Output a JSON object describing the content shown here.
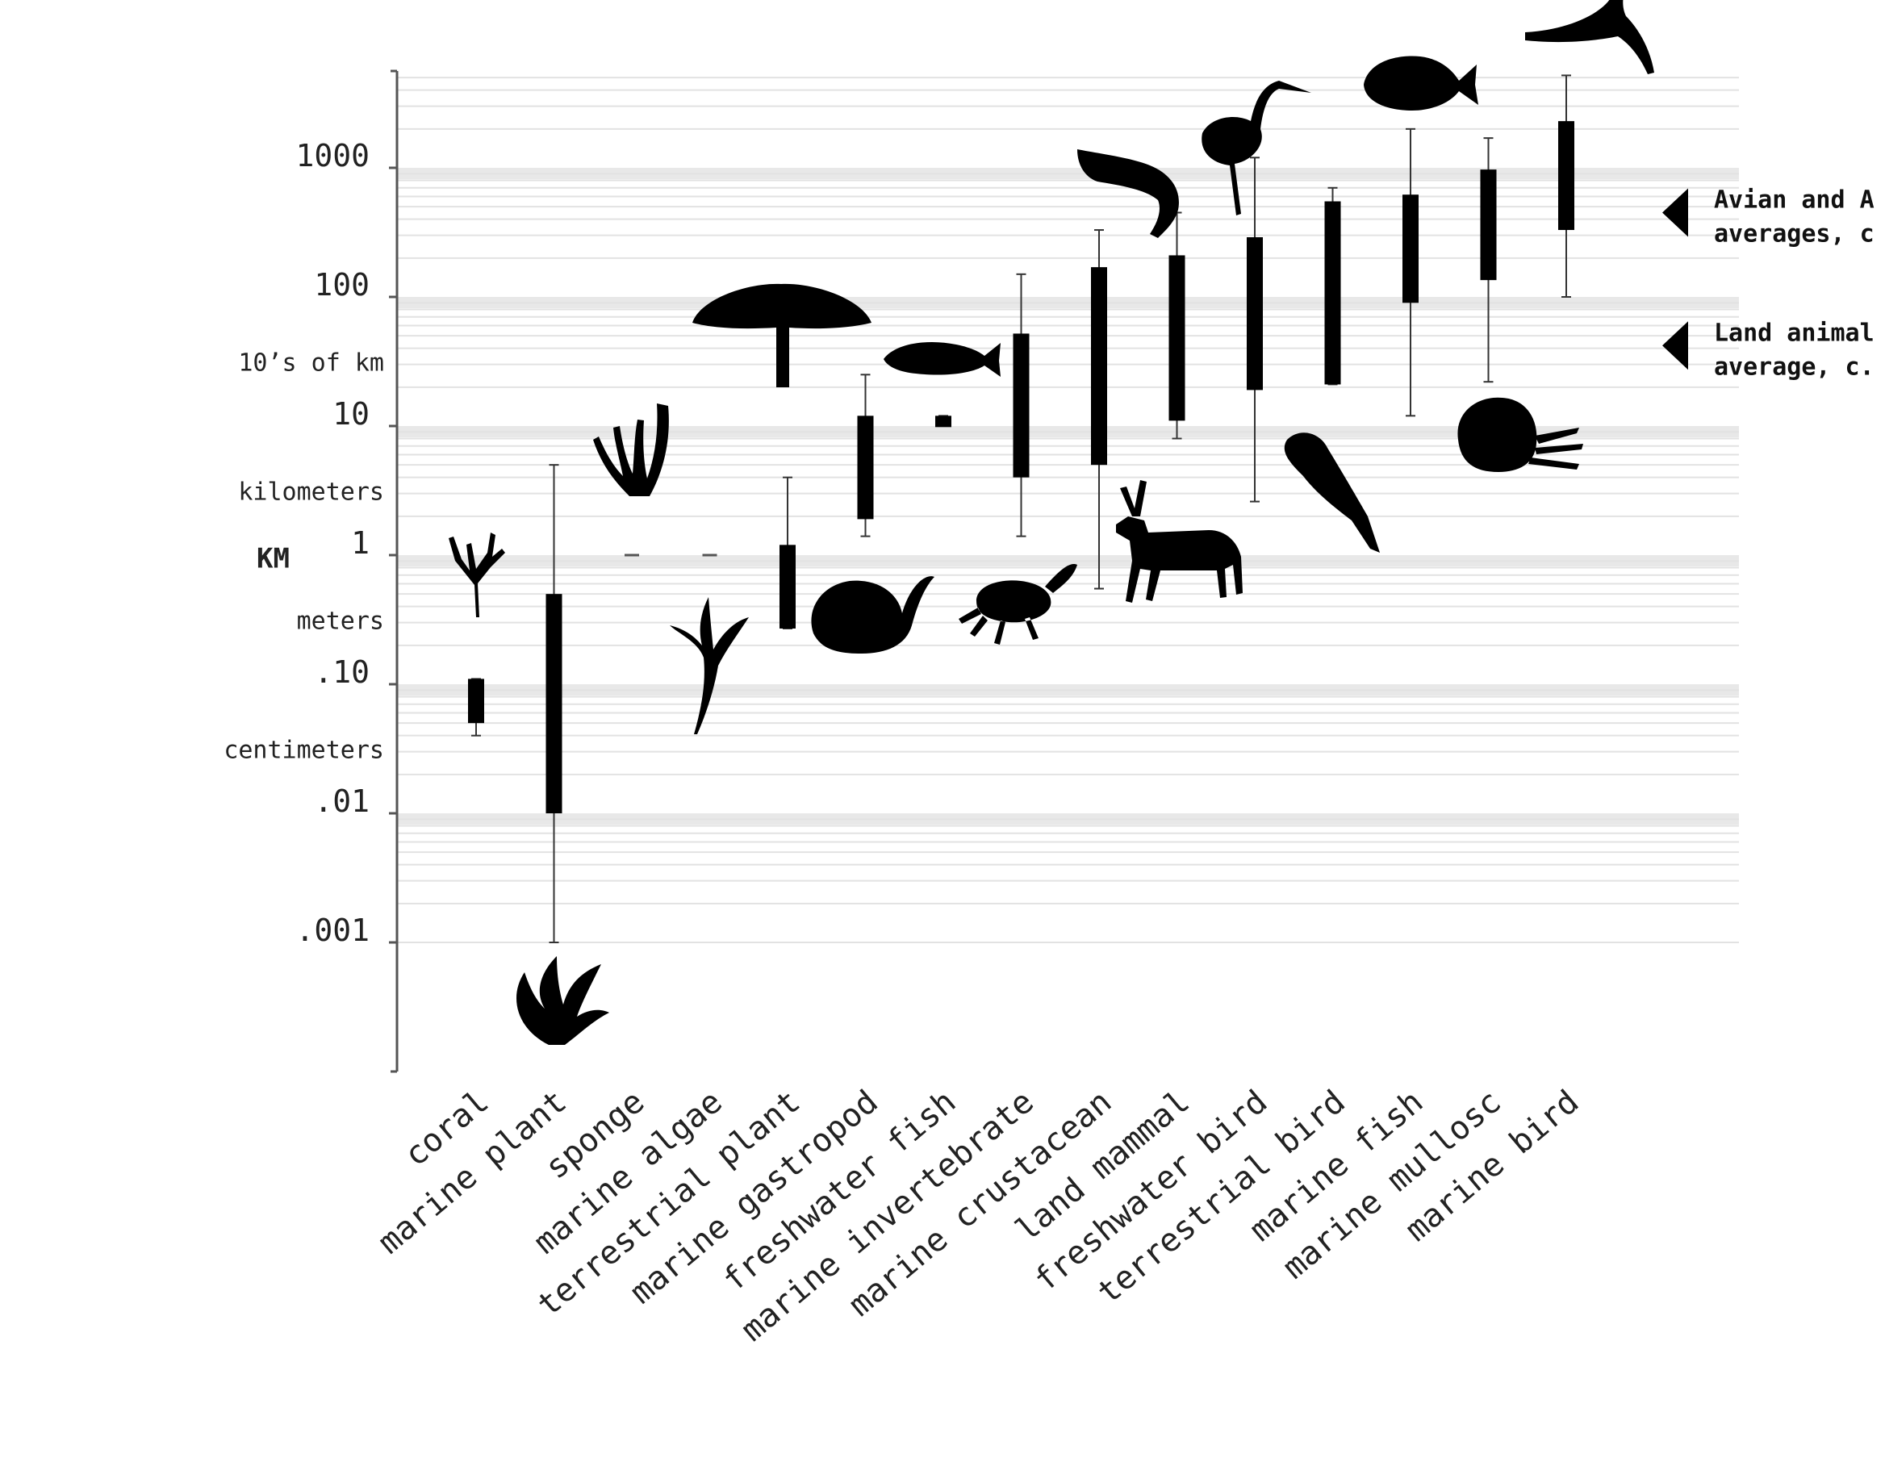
{
  "chart_data": {
    "type": "box",
    "scale": "log10",
    "ylim": [
      0.0001,
      5000
    ],
    "y_ticks": [
      {
        "value": 1000,
        "label": "1000"
      },
      {
        "value": 100,
        "label": "100"
      },
      {
        "value": 10,
        "label": "10"
      },
      {
        "value": 1,
        "label": "1"
      },
      {
        "value": 0.1,
        "label": ".10"
      },
      {
        "value": 0.01,
        "label": ".01"
      },
      {
        "value": 0.001,
        "label": ".001"
      }
    ],
    "unit_labels": [
      {
        "value": 31,
        "label": "10’s of km"
      },
      {
        "value": 3.1,
        "label": "kilometers"
      },
      {
        "value": 0.31,
        "label": "meters"
      },
      {
        "value": 0.031,
        "label": "centimeters"
      }
    ],
    "km_label": {
      "value": 0.95,
      "label": "KM"
    },
    "categories": [
      "coral",
      "marine plant",
      "sponge",
      "marine algae",
      "terrestrial plant",
      "marine gastropod",
      "freshwater fish",
      "marine invertebrate",
      "marine crustacean",
      "land mammal",
      "freshwater bird",
      "terrestrial bird",
      "marine fish",
      "marine mullosc",
      "marine bird"
    ],
    "series": [
      {
        "category": "coral",
        "whisker_low": 0.04,
        "q1": 0.05,
        "q3": 0.11,
        "whisker_high": 0.11
      },
      {
        "category": "marine plant",
        "whisker_low": 0.001,
        "q1": 0.01,
        "q3": 0.5,
        "whisker_high": 5
      },
      {
        "category": "sponge",
        "whisker_low": 1,
        "q1": 1,
        "q3": 1,
        "whisker_high": 1
      },
      {
        "category": "marine algae",
        "whisker_low": 1,
        "q1": 1,
        "q3": 1,
        "whisker_high": 1
      },
      {
        "category": "terrestrial plant",
        "whisker_low": 0.27,
        "q1": 0.27,
        "q3": 1.2,
        "whisker_high": 4
      },
      {
        "category": "marine gastropod",
        "whisker_low": 1.4,
        "q1": 1.9,
        "q3": 12,
        "whisker_high": 25
      },
      {
        "category": "freshwater fish",
        "whisker_low": 10,
        "q1": 10,
        "q3": 12,
        "whisker_high": 12
      },
      {
        "category": "marine invertebrate",
        "whisker_low": 1.4,
        "q1": 4,
        "q3": 52,
        "whisker_high": 150
      },
      {
        "category": "marine crustacean",
        "whisker_low": 0.55,
        "q1": 5,
        "q3": 170,
        "whisker_high": 330
      },
      {
        "category": "land mammal",
        "whisker_low": 8,
        "q1": 11,
        "q3": 210,
        "whisker_high": 450
      },
      {
        "category": "freshwater bird",
        "whisker_low": 2.6,
        "q1": 19,
        "q3": 290,
        "whisker_high": 1200
      },
      {
        "category": "terrestrial bird",
        "whisker_low": 21,
        "q1": 21,
        "q3": 550,
        "whisker_high": 700
      },
      {
        "category": "marine fish",
        "whisker_low": 12,
        "q1": 90,
        "q3": 620,
        "whisker_high": 2000
      },
      {
        "category": "marine mullosc",
        "whisker_low": 22,
        "q1": 135,
        "q3": 970,
        "whisker_high": 1700
      },
      {
        "category": "marine bird",
        "whisker_low": 100,
        "q1": 330,
        "q3": 2300,
        "whisker_high": 5200
      }
    ],
    "annotations": [
      {
        "value": 450,
        "lines": [
          "Avian and A",
          "averages, c"
        ]
      },
      {
        "value": 42,
        "lines": [
          "Land animal",
          "average, c."
        ]
      }
    ],
    "silhouettes": [
      {
        "category": "coral",
        "icon": "coral-icon",
        "position": "above"
      },
      {
        "category": "marine plant",
        "icon": "seagrass-icon",
        "position": "below"
      },
      {
        "category": "sponge",
        "icon": "sponge-icon",
        "position": "above"
      },
      {
        "category": "marine algae",
        "icon": "kelp-icon",
        "position": "below"
      },
      {
        "category": "terrestrial plant",
        "icon": "acacia-tree-icon",
        "position": "above"
      },
      {
        "category": "marine gastropod",
        "icon": "sea-snail-icon",
        "position": "below"
      },
      {
        "category": "freshwater fish",
        "icon": "trout-icon",
        "position": "above"
      },
      {
        "category": "marine invertebrate",
        "icon": "crab-icon",
        "position": "below"
      },
      {
        "category": "marine crustacean",
        "icon": "shrimp-icon",
        "position": "above"
      },
      {
        "category": "land mammal",
        "icon": "caribou-icon",
        "position": "below"
      },
      {
        "category": "freshwater bird",
        "icon": "heron-icon",
        "position": "above"
      },
      {
        "category": "terrestrial bird",
        "icon": "parrot-icon",
        "position": "below"
      },
      {
        "category": "marine fish",
        "icon": "reef-fish-icon",
        "position": "above"
      },
      {
        "category": "marine mullosc",
        "icon": "octopus-icon",
        "position": "below"
      },
      {
        "category": "marine bird",
        "icon": "frigatebird-icon",
        "position": "above"
      }
    ]
  }
}
